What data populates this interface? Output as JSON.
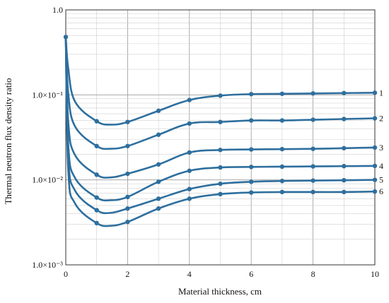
{
  "chart_data": {
    "type": "line",
    "title": "",
    "xlabel": "Material thickness, cm",
    "ylabel": "Thermal neutron flux density ratio",
    "xlim": [
      0,
      10
    ],
    "ylim": [
      0.001,
      1.0
    ],
    "yscale": "log",
    "grid": true,
    "x_ticks": [
      0,
      2,
      4,
      6,
      8,
      10
    ],
    "x_tick_labels": [
      "0",
      "2",
      "4",
      "6",
      "8",
      "10"
    ],
    "y_ticks": [
      0.001,
      0.01,
      0.1,
      1.0
    ],
    "y_tick_labels": [
      "1.0×10⁻³",
      "1.0×10⁻²",
      "1.0×10⁻¹",
      "1.0"
    ],
    "line_color": "#2e6f9e",
    "series": [
      {
        "name": "1",
        "x": [
          0,
          1,
          2,
          3,
          4,
          5,
          6,
          7,
          8,
          9,
          10
        ],
        "y": [
          0.48,
          0.049,
          0.048,
          0.065,
          0.087,
          0.098,
          0.102,
          0.103,
          0.104,
          0.105,
          0.106
        ]
      },
      {
        "name": "2",
        "x": [
          0,
          1,
          2,
          3,
          4,
          5,
          6,
          7,
          8,
          9,
          10
        ],
        "y": [
          0.48,
          0.025,
          0.025,
          0.034,
          0.046,
          0.048,
          0.05,
          0.05,
          0.051,
          0.052,
          0.053
        ]
      },
      {
        "name": "3",
        "x": [
          0,
          1,
          2,
          3,
          4,
          5,
          6,
          7,
          8,
          9,
          10
        ],
        "y": [
          0.48,
          0.0115,
          0.0118,
          0.0152,
          0.021,
          0.0225,
          0.0228,
          0.023,
          0.0232,
          0.0236,
          0.024
        ]
      },
      {
        "name": "4",
        "x": [
          0,
          1,
          2,
          3,
          4,
          5,
          6,
          7,
          8,
          9,
          10
        ],
        "y": [
          0.48,
          0.0062,
          0.0063,
          0.0095,
          0.0128,
          0.014,
          0.0142,
          0.0143,
          0.0144,
          0.0145,
          0.0146
        ]
      },
      {
        "name": "5",
        "x": [
          0,
          1,
          2,
          3,
          4,
          5,
          6,
          7,
          8,
          9,
          10
        ],
        "y": [
          0.48,
          0.0044,
          0.0046,
          0.006,
          0.0078,
          0.009,
          0.0095,
          0.0097,
          0.0098,
          0.0099,
          0.01
        ]
      },
      {
        "name": "6",
        "x": [
          0,
          1,
          2,
          3,
          4,
          5,
          6,
          7,
          8,
          9,
          10
        ],
        "y": [
          0.48,
          0.0031,
          0.0032,
          0.0046,
          0.006,
          0.0068,
          0.0071,
          0.0072,
          0.0072,
          0.0072,
          0.0073
        ]
      }
    ]
  }
}
